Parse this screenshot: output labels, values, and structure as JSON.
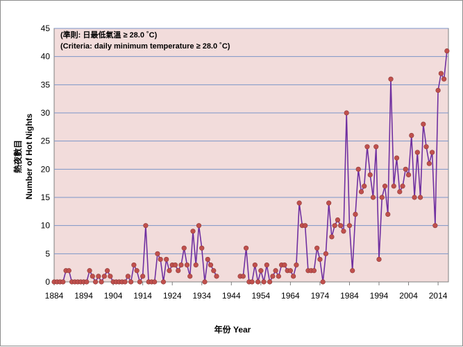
{
  "chart_data": {
    "type": "line",
    "title": "",
    "annotation_zh": "(準則: 日最低氣溫 ≥ 28.0 ˚C)",
    "annotation_en": "(Criteria: daily minimum temperature ≥ 28.0 ˚C)",
    "xlabel": "年份  Year",
    "ylabel_zh": "熱夜數目",
    "ylabel_en": "Number of Hot Nights",
    "xlim": [
      1884,
      2016
    ],
    "ylim": [
      0,
      45
    ],
    "x_ticks": [
      "1884",
      "1894",
      "1904",
      "1914",
      "1924",
      "1934",
      "1944",
      "1954",
      "1964",
      "1974",
      "1984",
      "1994",
      "2004",
      "2014"
    ],
    "y_ticks": [
      "0",
      "5",
      "10",
      "15",
      "20",
      "25",
      "30",
      "35",
      "40",
      "45"
    ],
    "grid": true,
    "legend": "none",
    "colors": {
      "plot_background": "#f2dcdb",
      "line": "#7030a0",
      "marker": "#c0504d",
      "grid": "#7b95c8"
    },
    "series": [
      {
        "segments": [
          {
            "x": [
              1884,
              1885,
              1886,
              1887,
              1888,
              1889,
              1890,
              1891,
              1892,
              1893,
              1894,
              1895,
              1896,
              1897,
              1898,
              1899,
              1900,
              1901,
              1902,
              1903,
              1904,
              1905,
              1906,
              1907,
              1908,
              1909,
              1910,
              1911,
              1912,
              1913,
              1914,
              1915,
              1916,
              1917,
              1918,
              1919,
              1920,
              1921,
              1922,
              1923,
              1924,
              1925,
              1926,
              1927,
              1928,
              1929,
              1930,
              1931,
              1932,
              1933,
              1934,
              1935,
              1936,
              1937,
              1938,
              1939
            ],
            "y": [
              0,
              0,
              0,
              0,
              2,
              2,
              0,
              0,
              0,
              0,
              0,
              0,
              2,
              1,
              0,
              1,
              0,
              1,
              2,
              1,
              0,
              0,
              0,
              0,
              0,
              1,
              0,
              3,
              2,
              0,
              1,
              10,
              0,
              0,
              0,
              5,
              4,
              0,
              4,
              2,
              3,
              3,
              2,
              3,
              6,
              3,
              1,
              9,
              3,
              10,
              6,
              0,
              4,
              3,
              2,
              1
            ]
          },
          {
            "x": [
              1947,
              1948,
              1949,
              1950,
              1951,
              1952,
              1953,
              1954,
              1955,
              1956,
              1957,
              1958,
              1959,
              1960,
              1961,
              1962,
              1963,
              1964,
              1965,
              1966,
              1967,
              1968,
              1969,
              1970,
              1971,
              1972,
              1973,
              1974,
              1975,
              1976,
              1977,
              1978,
              1979,
              1980,
              1981,
              1982,
              1983,
              1984,
              1985,
              1986,
              1987,
              1988,
              1989,
              1990,
              1991,
              1992,
              1993,
              1994,
              1995,
              1996,
              1997,
              1998,
              1999,
              2000,
              2001,
              2002,
              2003,
              2004,
              2005,
              2006,
              2007,
              2008,
              2009,
              2010,
              2011,
              2012,
              2013,
              2014,
              2015,
              2016
            ],
            "y": [
              1,
              1,
              6,
              0,
              0,
              3,
              0,
              2,
              0,
              3,
              0,
              1,
              2,
              1,
              3,
              3,
              2,
              2,
              1,
              3,
              14,
              10,
              10,
              2,
              2,
              2,
              6,
              4,
              0,
              5,
              14,
              8,
              10,
              11,
              10,
              9,
              30,
              10,
              2,
              12,
              20,
              16,
              17,
              24,
              19,
              15,
              24,
              4,
              15,
              17,
              12,
              36,
              17,
              22,
              16,
              17,
              20,
              19,
              26,
              15,
              23,
              15,
              28,
              24,
              21,
              23,
              10,
              34,
              37,
              36
            ]
          }
        ]
      },
      {
        "points_only": {
          "x": [
            2017
          ],
          "y": [
            41
          ]
        }
      }
    ]
  }
}
